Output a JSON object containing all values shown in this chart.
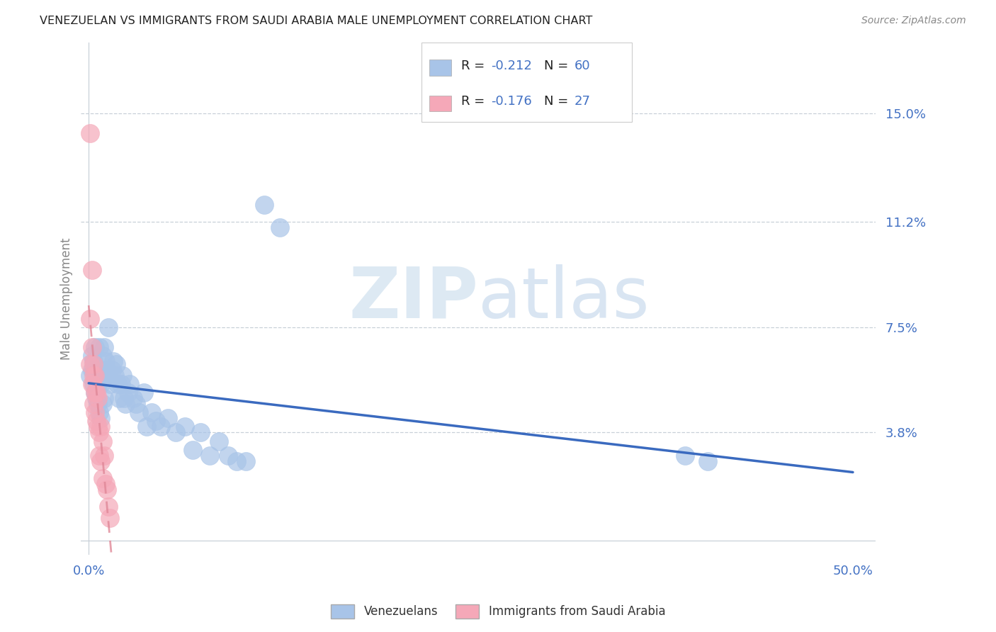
{
  "title": "VENEZUELAN VS IMMIGRANTS FROM SAUDI ARABIA MALE UNEMPLOYMENT CORRELATION CHART",
  "source": "Source: ZipAtlas.com",
  "ylabel": "Male Unemployment",
  "xlim": [
    -0.005,
    0.515
  ],
  "ylim": [
    -0.005,
    0.175
  ],
  "xtick_positions": [
    0.0,
    0.1,
    0.2,
    0.3,
    0.4,
    0.5
  ],
  "xtick_labels": [
    "0.0%",
    "",
    "",
    "",
    "",
    "50.0%"
  ],
  "ytick_positions_right": [
    0.15,
    0.112,
    0.075,
    0.038
  ],
  "ytick_labels_right": [
    "15.0%",
    "11.2%",
    "7.5%",
    "3.8%"
  ],
  "gridline_y": [
    0.15,
    0.112,
    0.075,
    0.038
  ],
  "legend_r1_prefix": "R = ",
  "legend_r1_val": "-0.212",
  "legend_n1_prefix": "N = ",
  "legend_n1_val": "60",
  "legend_r2_prefix": "R = ",
  "legend_r2_val": "-0.176",
  "legend_n2_prefix": "N = ",
  "legend_n2_val": "27",
  "watermark_zip": "ZIP",
  "watermark_atlas": "atlas",
  "blue_color": "#a8c4e8",
  "pink_color": "#f5a8b8",
  "trend_blue": "#3a6abf",
  "trend_pink": "#e08898",
  "label_color": "#4472c4",
  "venezuelan_x": [
    0.001,
    0.002,
    0.002,
    0.003,
    0.003,
    0.004,
    0.004,
    0.004,
    0.005,
    0.005,
    0.006,
    0.006,
    0.007,
    0.007,
    0.007,
    0.008,
    0.008,
    0.009,
    0.009,
    0.01,
    0.01,
    0.011,
    0.012,
    0.013,
    0.013,
    0.014,
    0.015,
    0.016,
    0.017,
    0.018,
    0.019,
    0.02,
    0.021,
    0.022,
    0.023,
    0.024,
    0.026,
    0.027,
    0.029,
    0.031,
    0.033,
    0.036,
    0.038,
    0.041,
    0.044,
    0.047,
    0.052,
    0.057,
    0.063,
    0.068,
    0.073,
    0.079,
    0.085,
    0.091,
    0.097,
    0.103,
    0.115,
    0.125,
    0.39,
    0.405
  ],
  "venezuelan_y": [
    0.058,
    0.065,
    0.06,
    0.055,
    0.063,
    0.052,
    0.06,
    0.068,
    0.05,
    0.058,
    0.048,
    0.055,
    0.068,
    0.045,
    0.06,
    0.055,
    0.043,
    0.065,
    0.048,
    0.068,
    0.05,
    0.063,
    0.06,
    0.058,
    0.075,
    0.055,
    0.06,
    0.063,
    0.058,
    0.062,
    0.055,
    0.05,
    0.055,
    0.058,
    0.05,
    0.048,
    0.052,
    0.055,
    0.05,
    0.048,
    0.045,
    0.052,
    0.04,
    0.045,
    0.042,
    0.04,
    0.043,
    0.038,
    0.04,
    0.032,
    0.038,
    0.03,
    0.035,
    0.03,
    0.028,
    0.028,
    0.118,
    0.11,
    0.03,
    0.028
  ],
  "saudi_x": [
    0.001,
    0.001,
    0.001,
    0.002,
    0.002,
    0.002,
    0.003,
    0.003,
    0.003,
    0.004,
    0.004,
    0.004,
    0.005,
    0.005,
    0.006,
    0.006,
    0.007,
    0.007,
    0.008,
    0.008,
    0.009,
    0.009,
    0.01,
    0.011,
    0.012,
    0.013,
    0.014
  ],
  "saudi_y": [
    0.143,
    0.078,
    0.062,
    0.095,
    0.068,
    0.055,
    0.062,
    0.058,
    0.048,
    0.058,
    0.052,
    0.045,
    0.052,
    0.042,
    0.05,
    0.04,
    0.038,
    0.03,
    0.04,
    0.028,
    0.035,
    0.022,
    0.03,
    0.02,
    0.018,
    0.012,
    0.008
  ]
}
